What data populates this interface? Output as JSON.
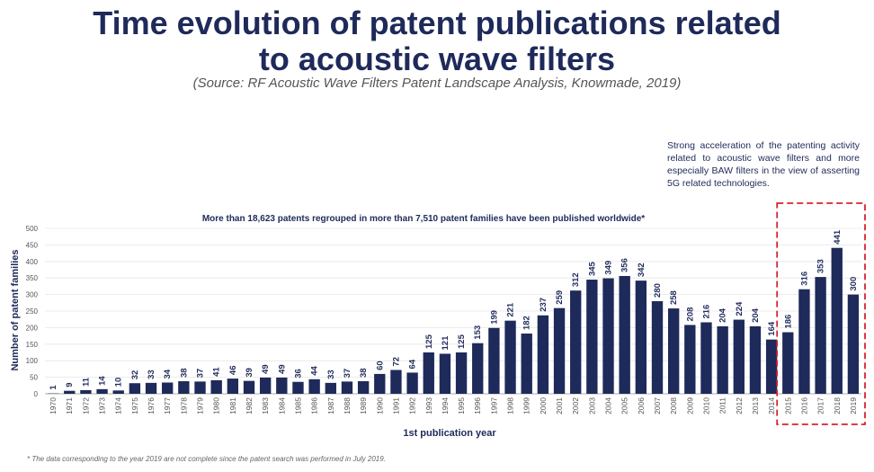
{
  "header": {
    "title": "Time evolution of patent publications related to acoustic wave filters",
    "subtitle": "(Source: RF Acoustic Wave Filters Patent Landscape Analysis, Knowmade, 2019)"
  },
  "annotation": "Strong acceleration of the patenting activity related to acoustic wave filters and more especially BAW filters in the view of asserting 5G related technologies.",
  "footnote": "* The data corresponding to the year 2019 are not complete since the patent search was performed in July 2019.",
  "colors": {
    "bar": "#1e2a5a",
    "highlight": "#d9232d",
    "text": "#1e2a5a"
  },
  "chart_data": {
    "type": "bar",
    "title": "More than 18,623 patents regrouped in more than 7,510 patent families have been published worldwide*",
    "xlabel": "1st publication year",
    "ylabel": "Number of patent families",
    "ylim": [
      0,
      500
    ],
    "yticks": [
      0,
      50,
      100,
      150,
      200,
      250,
      300,
      350,
      400,
      450,
      500
    ],
    "highlight_range": [
      "2015",
      "2019"
    ],
    "categories": [
      "1970",
      "1971",
      "1972",
      "1973",
      "1974",
      "1975",
      "1976",
      "1977",
      "1978",
      "1979",
      "1980",
      "1981",
      "1982",
      "1983",
      "1984",
      "1985",
      "1986",
      "1987",
      "1988",
      "1989",
      "1990",
      "1991",
      "1992",
      "1993",
      "1994",
      "1995",
      "1996",
      "1997",
      "1998",
      "1999",
      "2000",
      "2001",
      "2002",
      "2003",
      "2004",
      "2005",
      "2006",
      "2007",
      "2008",
      "2009",
      "2010",
      "2011",
      "2012",
      "2013",
      "2014",
      "2015",
      "2016",
      "2017",
      "2018",
      "2019"
    ],
    "values": [
      1,
      9,
      11,
      14,
      10,
      32,
      33,
      34,
      38,
      37,
      41,
      46,
      39,
      49,
      49,
      36,
      44,
      33,
      37,
      38,
      60,
      72,
      64,
      125,
      121,
      125,
      153,
      199,
      221,
      182,
      237,
      259,
      312,
      345,
      349,
      356,
      342,
      280,
      258,
      208,
      216,
      204,
      224,
      204,
      164,
      186,
      316,
      353,
      441,
      300
    ]
  }
}
